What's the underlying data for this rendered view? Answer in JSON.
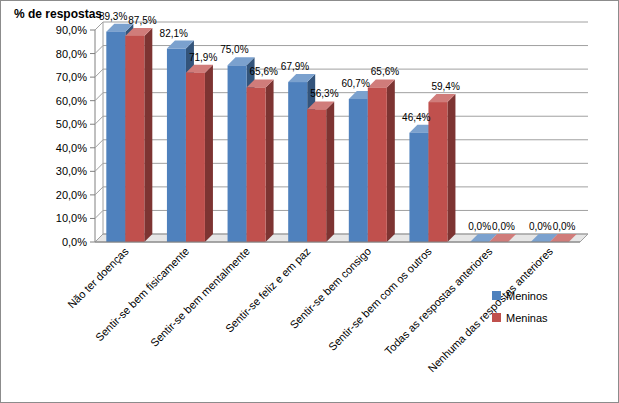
{
  "chart_data": {
    "type": "bar",
    "y_label": "% de respostas",
    "categories": [
      "Não ter doenças",
      "Sentir-se bem fisicamente",
      "Sentir-se bem mentalmente",
      "Sentir-se feliz e em paz",
      "Sentir-se bem consigo",
      "Sentir-se bem com os outros",
      "Todas as respostas anteriores",
      "Nenhuma das respostas anteriores"
    ],
    "series": [
      {
        "name": "Meninos",
        "color": "#4f81bd",
        "values": [
          89.3,
          82.1,
          75.0,
          67.9,
          60.7,
          46.4,
          0,
          0
        ],
        "value_labels": [
          "89,3%",
          "82,1%",
          "75,0%",
          "67,9%",
          "60,7%",
          "46,4%",
          "0,0%",
          "0,0%"
        ]
      },
      {
        "name": "Meninas",
        "color": "#c0504d",
        "values": [
          87.5,
          71.9,
          65.6,
          56.3,
          65.6,
          59.4,
          0,
          0
        ],
        "value_labels": [
          "87,5%",
          "71,9%",
          "65,6%",
          "56,3%",
          "65,6%",
          "59,4%",
          "0,0%",
          "0,0%"
        ]
      }
    ],
    "ylim": [
      0,
      90
    ],
    "yticks": [
      {
        "value": 0,
        "label": "0,0%"
      },
      {
        "value": 10,
        "label": "10,0%"
      },
      {
        "value": 20,
        "label": "20,0%"
      },
      {
        "value": 30,
        "label": "30,0%"
      },
      {
        "value": 40,
        "label": "40,0%"
      },
      {
        "value": 50,
        "label": "50,0%"
      },
      {
        "value": 60,
        "label": "60,0%"
      },
      {
        "value": 70,
        "label": "70,0%"
      },
      {
        "value": 80,
        "label": "80,0%"
      },
      {
        "value": 90,
        "label": "90,0%"
      }
    ],
    "grid": true,
    "legend": "right",
    "data_labels": true
  }
}
